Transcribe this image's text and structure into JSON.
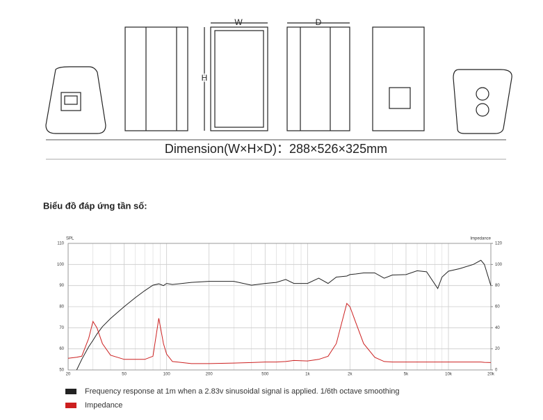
{
  "labels": {
    "w": "W",
    "h": "H",
    "d": "D"
  },
  "dimension": "Dimension(W×H×D)：288×526×325mm",
  "heading": "Biểu đồ đáp ứng tần số:",
  "chart_data": {
    "type": "line",
    "ylabel": "SPL",
    "y2label": "Impedance",
    "log_x": true,
    "grid": true,
    "x": [
      20,
      23,
      25,
      28,
      30,
      32,
      35,
      40,
      50,
      60,
      70,
      80,
      88,
      95,
      100,
      110,
      150,
      200,
      300,
      400,
      500,
      600,
      700,
      800,
      1000,
      1200,
      1400,
      1600,
      1900,
      2000,
      2200,
      2500,
      3000,
      3500,
      4000,
      5000,
      6000,
      7000,
      8400,
      9000,
      10000,
      12000,
      15000,
      17000,
      18000,
      20000
    ],
    "series": [
      {
        "name": "Frequency response at 1m when a 2.83v sinusoidal signal is applied. 1/6th octave smoothing",
        "color": "#222222",
        "values": [
          null,
          50,
          55,
          61,
          64,
          67,
          70.5,
          74.4,
          80,
          84.3,
          87.6,
          90.2,
          90.8,
          90,
          91,
          90.5,
          91.5,
          92,
          92,
          90.2,
          91,
          91.5,
          92.9,
          91,
          91,
          93.5,
          91,
          94,
          94.5,
          95.2,
          95.5,
          96,
          96,
          93.5,
          95,
          95.2,
          97,
          96.5,
          88.6,
          94,
          96.8,
          98,
          100,
          102,
          100,
          90
        ]
      },
      {
        "name": "Impedance",
        "color": "#cc1f1f",
        "axis": "y2",
        "values": [
          11,
          12,
          13,
          30,
          46,
          40,
          25,
          14,
          10,
          10,
          10,
          13,
          49,
          25,
          15,
          8,
          6,
          6,
          6.5,
          7,
          7.5,
          7.5,
          8,
          9,
          8.5,
          10,
          13,
          25,
          63,
          60,
          45,
          25,
          12,
          8,
          7.5,
          7.5,
          7.5,
          7.5,
          7.5,
          7.5,
          7.5,
          7.5,
          7.5,
          7.5,
          7.2,
          7
        ]
      }
    ],
    "xlim": [
      20,
      20000
    ],
    "xticks": [
      20,
      50,
      100,
      200,
      500,
      {
        "value": 1000,
        "label": "1k"
      },
      {
        "value": 2000,
        "label": "2k"
      },
      {
        "value": 5000,
        "label": "5k"
      },
      {
        "value": 10000,
        "label": "10k"
      },
      {
        "value": 20000,
        "label": "20k"
      }
    ],
    "xminorticks": [
      30,
      40,
      60,
      70,
      80,
      90,
      300,
      400,
      600,
      700,
      800,
      900,
      3000,
      4000,
      6000,
      7000,
      8000,
      9000
    ],
    "ylim": [
      50,
      110
    ],
    "yticks": [
      50,
      60,
      70,
      80,
      90,
      100,
      110
    ],
    "y2lim": [
      0,
      120
    ],
    "y2ticks": [
      0,
      20,
      40,
      60,
      80,
      100,
      120
    ]
  }
}
